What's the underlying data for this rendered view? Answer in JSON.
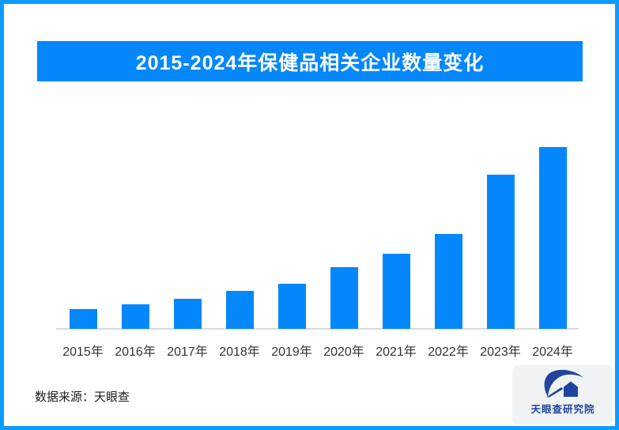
{
  "title_banner": {
    "text": "2015-2024年保健品相关企业数量变化"
  },
  "chart_data": {
    "type": "bar",
    "title": "2015-2024年保健品相关企业数量变化",
    "categories": [
      "2015年",
      "2016年",
      "2017年",
      "2018年",
      "2019年",
      "2020年",
      "2021年",
      "2022年",
      "2023年",
      "2024年"
    ],
    "values": [
      25,
      31,
      38,
      48,
      57,
      78,
      95,
      120,
      195,
      230
    ],
    "value_scale": "relative bar heights in pixels; chart shows no numeric y-axis or data labels",
    "xlabel": "",
    "ylabel": "",
    "y_axis_visible": false,
    "gridlines": false,
    "legend": "none",
    "bar_color": "#0487fb"
  },
  "footer": {
    "source_text": "数据来源：天眼查",
    "logo_text": "天眼查研究院"
  },
  "colors": {
    "accent_blue": "#0487fb",
    "border_blue": "#0c9bfe",
    "logo_navy": "#20459e",
    "axis_gray": "#d9d9d9",
    "card_gray": "#f1f2f4"
  }
}
